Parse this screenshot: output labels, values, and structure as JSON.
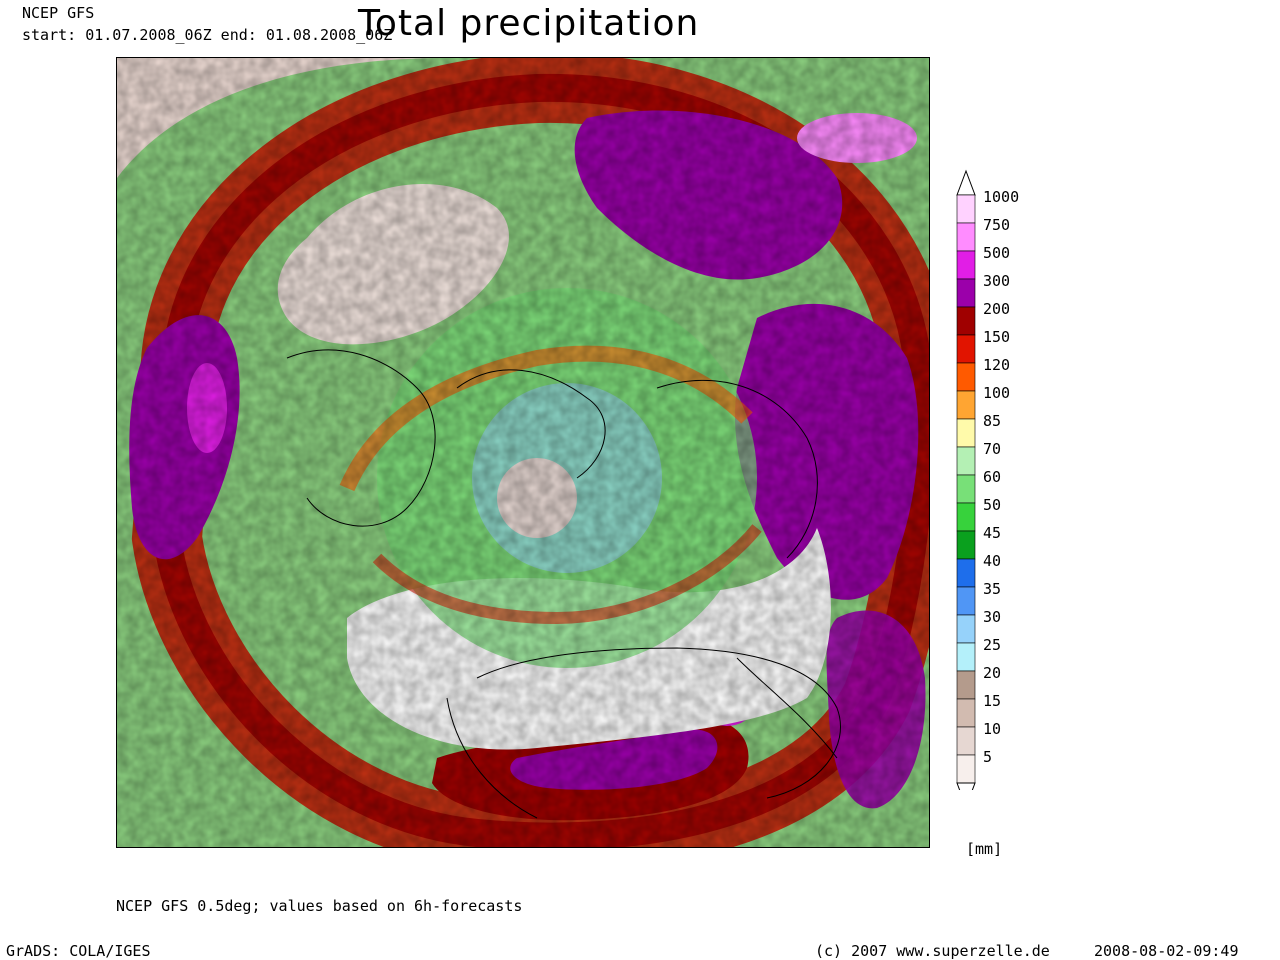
{
  "header": {
    "model": "NCEP GFS",
    "period": "start: 01.07.2008_06Z end: 01.08.2008_06Z",
    "title": "Total precipitation"
  },
  "legend": {
    "unit": "[mm]",
    "levels": [
      {
        "label": "1000",
        "color": "#ffd2ff"
      },
      {
        "label": "750",
        "color": "#ff8cff"
      },
      {
        "label": "500",
        "color": "#e11ee6"
      },
      {
        "label": "300",
        "color": "#9b00aa"
      },
      {
        "label": "200",
        "color": "#a00000"
      },
      {
        "label": "150",
        "color": "#e11400"
      },
      {
        "label": "120",
        "color": "#ff5a00"
      },
      {
        "label": "100",
        "color": "#ffa532"
      },
      {
        "label": "85",
        "color": "#fffaaa"
      },
      {
        "label": "70",
        "color": "#b4f0b4"
      },
      {
        "label": "60",
        "color": "#78e078"
      },
      {
        "label": "50",
        "color": "#37d23c"
      },
      {
        "label": "45",
        "color": "#0aa01e"
      },
      {
        "label": "40",
        "color": "#1e6eeb"
      },
      {
        "label": "35",
        "color": "#5096f5"
      },
      {
        "label": "30",
        "color": "#96d2fa"
      },
      {
        "label": "25",
        "color": "#b4f0fa"
      },
      {
        "label": "20",
        "color": "#b49b8c"
      },
      {
        "label": "15",
        "color": "#d2bbb0"
      },
      {
        "label": "10",
        "color": "#e6d7d2"
      },
      {
        "label": "5",
        "color": "#f7efec"
      }
    ]
  },
  "footer": {
    "note": "NCEP GFS 0.5deg; values based on 6h-forecasts",
    "software": "GrADS: COLA/IGES",
    "copyright": "(c) 2007 www.superzelle.de",
    "timestamp": "2008-08-02-09:49"
  }
}
